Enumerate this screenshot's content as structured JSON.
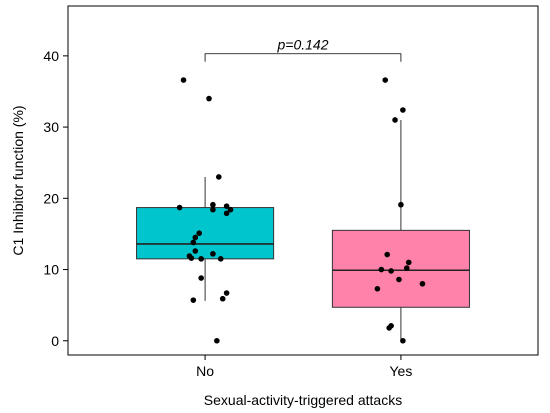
{
  "chart_data": {
    "type": "box",
    "title": "",
    "xlabel": "Sexual-activity-triggered attacks",
    "ylabel": "C1 Inhibitor function (%)",
    "ylim": [
      -2,
      47
    ],
    "yticks": [
      0,
      10,
      20,
      30,
      40
    ],
    "grid": false,
    "legend": "none",
    "categories": [
      "No",
      "Yes"
    ],
    "boxes": [
      {
        "category": "No",
        "color": "#00C5CD",
        "q1": 11.5,
        "median": 13.6,
        "q3": 18.7,
        "whisker_low": 5.6,
        "whisker_high": 23.0
      },
      {
        "category": "Yes",
        "color": "#FF82AB",
        "q1": 4.7,
        "median": 9.9,
        "q3": 15.5,
        "whisker_low": 0.0,
        "whisker_high": 31.0
      }
    ],
    "points": [
      {
        "category": "No",
        "jitter": -0.11,
        "y": 36.6
      },
      {
        "category": "No",
        "jitter": 0.02,
        "y": 34.0
      },
      {
        "category": "No",
        "jitter": 0.07,
        "y": 23.0
      },
      {
        "category": "No",
        "jitter": -0.13,
        "y": 18.7
      },
      {
        "category": "No",
        "jitter": 0.04,
        "y": 19.1
      },
      {
        "category": "No",
        "jitter": 0.11,
        "y": 18.9
      },
      {
        "category": "No",
        "jitter": 0.13,
        "y": 18.4
      },
      {
        "category": "No",
        "jitter": 0.04,
        "y": 18.4
      },
      {
        "category": "No",
        "jitter": 0.11,
        "y": 17.9
      },
      {
        "category": "No",
        "jitter": -0.03,
        "y": 15.1
      },
      {
        "category": "No",
        "jitter": -0.05,
        "y": 14.5
      },
      {
        "category": "No",
        "jitter": -0.06,
        "y": 13.8
      },
      {
        "category": "No",
        "jitter": -0.05,
        "y": 12.6
      },
      {
        "category": "No",
        "jitter": 0.04,
        "y": 12.2
      },
      {
        "category": "No",
        "jitter": -0.08,
        "y": 11.9
      },
      {
        "category": "No",
        "jitter": -0.07,
        "y": 11.6
      },
      {
        "category": "No",
        "jitter": -0.02,
        "y": 11.5
      },
      {
        "category": "No",
        "jitter": 0.08,
        "y": 11.5
      },
      {
        "category": "No",
        "jitter": -0.02,
        "y": 8.8
      },
      {
        "category": "No",
        "jitter": 0.11,
        "y": 6.7
      },
      {
        "category": "No",
        "jitter": 0.09,
        "y": 5.9
      },
      {
        "category": "No",
        "jitter": -0.06,
        "y": 5.7
      },
      {
        "category": "No",
        "jitter": 0.06,
        "y": 0.0
      },
      {
        "category": "Yes",
        "jitter": -0.08,
        "y": 36.6
      },
      {
        "category": "Yes",
        "jitter": 0.01,
        "y": 32.4
      },
      {
        "category": "Yes",
        "jitter": -0.03,
        "y": 31.0
      },
      {
        "category": "Yes",
        "jitter": 0.0,
        "y": 19.1
      },
      {
        "category": "Yes",
        "jitter": -0.07,
        "y": 12.1
      },
      {
        "category": "Yes",
        "jitter": 0.04,
        "y": 11.0
      },
      {
        "category": "Yes",
        "jitter": -0.1,
        "y": 10.0
      },
      {
        "category": "Yes",
        "jitter": 0.03,
        "y": 10.2
      },
      {
        "category": "Yes",
        "jitter": -0.05,
        "y": 9.8
      },
      {
        "category": "Yes",
        "jitter": 0.11,
        "y": 8.0
      },
      {
        "category": "Yes",
        "jitter": -0.01,
        "y": 8.6
      },
      {
        "category": "Yes",
        "jitter": -0.12,
        "y": 7.3
      },
      {
        "category": "Yes",
        "jitter": -0.05,
        "y": 2.1
      },
      {
        "category": "Yes",
        "jitter": -0.06,
        "y": 1.8
      },
      {
        "category": "Yes",
        "jitter": 0.01,
        "y": 0.0
      }
    ],
    "annotation": {
      "text": "p=0.142",
      "bracket_y": 40.3
    }
  }
}
